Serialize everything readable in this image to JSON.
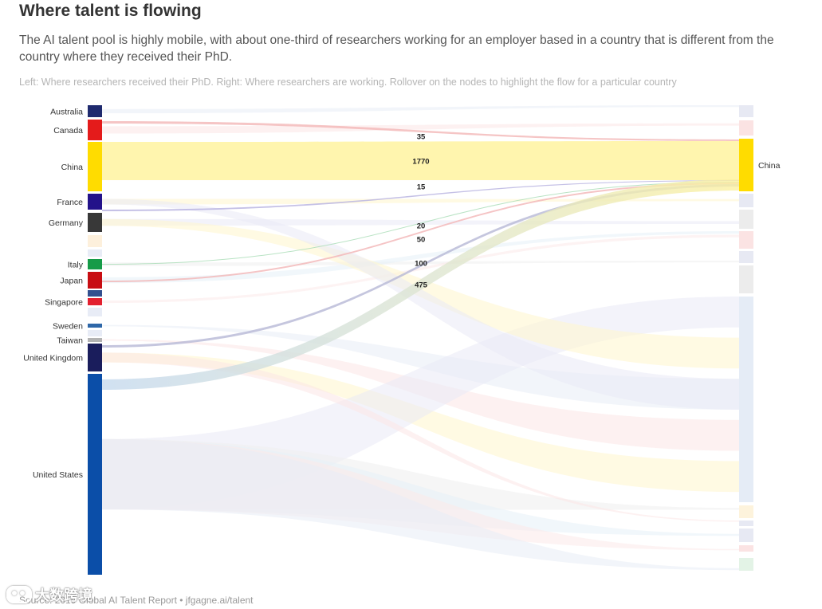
{
  "header": {
    "title": "Where talent is flowing",
    "subtitle": "The AI talent pool is highly mobile, with about one-third of researchers working for an employer based in a country that is different from the country where they received their PhD.",
    "note": "Left: Where researchers received their PhD. Right: Where researchers are working. Rollover on the nodes to highlight the flow for a particular country"
  },
  "footer": {
    "source": "Source: 2019 Global AI Talent Report • jfgagne.ai/talent",
    "watermark": "大数跨境"
  },
  "chart_data": {
    "type": "sankey",
    "left_label": "Where researchers received their PhD",
    "right_label": "Where researchers are working",
    "highlighted_target": "China",
    "left_nodes": [
      {
        "name": "Australia",
        "label": "Australia",
        "color": "#1f2a6e"
      },
      {
        "name": "Canada",
        "label": "Canada",
        "color": "#e41b1b"
      },
      {
        "name": "China",
        "label": "China",
        "color": "#ffdc00"
      },
      {
        "name": "France",
        "label": "France",
        "color": "#23128a"
      },
      {
        "name": "Germany",
        "label": "Germany",
        "color": "#383838"
      },
      {
        "name": "",
        "label": "",
        "color": "#fdf0dc"
      },
      {
        "name": "",
        "label": "",
        "color": "#e8ecf6"
      },
      {
        "name": "Italy",
        "label": "Italy",
        "color": "#169b48"
      },
      {
        "name": "Japan",
        "label": "Japan",
        "color": "#c80d12"
      },
      {
        "name": "",
        "label": "",
        "color": "#33508f"
      },
      {
        "name": "Singapore",
        "label": "Singapore",
        "color": "#e3202f"
      },
      {
        "name": "",
        "label": "",
        "color": "#e8ecf6"
      },
      {
        "name": "Sweden",
        "label": "Sweden",
        "color": "#2e67a8"
      },
      {
        "name": "",
        "label": "",
        "color": "#e8ecf6"
      },
      {
        "name": "Taiwan",
        "label": "Taiwan",
        "color": "#b3b3b3"
      },
      {
        "name": "United Kingdom",
        "label": "United Kingdom",
        "color": "#1a1d5c"
      },
      {
        "name": "United States",
        "label": "United States",
        "color": "#0b4ea8"
      }
    ],
    "right_nodes": [
      {
        "name": "",
        "label": "",
        "color": "#e7e9f3"
      },
      {
        "name": "",
        "label": "",
        "color": "#fbe3e3"
      },
      {
        "name": "China",
        "label": "China",
        "color": "#ffdc00"
      },
      {
        "name": "",
        "label": "",
        "color": "#e7e9f3"
      },
      {
        "name": "",
        "label": "",
        "color": "#ececec"
      },
      {
        "name": "",
        "label": "",
        "color": "#fbe3e3"
      },
      {
        "name": "",
        "label": "",
        "color": "#e7e9f3"
      },
      {
        "name": "",
        "label": "",
        "color": "#ececec"
      },
      {
        "name": "",
        "label": "",
        "color": "#e5ecf6"
      },
      {
        "name": "",
        "label": "",
        "color": "#fdf3dc"
      },
      {
        "name": "",
        "label": "",
        "color": "#e7e9f3"
      },
      {
        "name": "",
        "label": "",
        "color": "#e7e9f3"
      },
      {
        "name": "",
        "label": "",
        "color": "#fbe3e3"
      },
      {
        "name": "",
        "label": "",
        "color": "#e3f3e6"
      }
    ],
    "flows_to_china": [
      {
        "source": "Canada",
        "target": "China",
        "value": 35,
        "label": "35"
      },
      {
        "source": "China",
        "target": "China",
        "value": 1770,
        "label": "1770"
      },
      {
        "source": "France",
        "target": "China",
        "value": 15,
        "label": "15"
      },
      {
        "source": "Italy",
        "target": "China",
        "value": 20,
        "label": "20"
      },
      {
        "source": "Japan",
        "target": "China",
        "value": 50,
        "label": "50"
      },
      {
        "source": "United Kingdom",
        "target": "China",
        "value": 100,
        "label": "100"
      },
      {
        "source": "United States",
        "target": "China",
        "value": 475,
        "label": "475"
      }
    ]
  }
}
